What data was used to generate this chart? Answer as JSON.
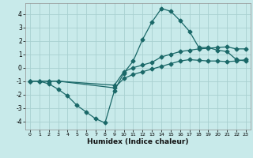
{
  "xlabel": "Humidex (Indice chaleur)",
  "bg_color": "#c8eaea",
  "grid_color": "#a8d0d0",
  "line_color": "#1a6868",
  "xlim": [
    -0.5,
    23.5
  ],
  "ylim": [
    -4.6,
    4.8
  ],
  "xticks": [
    0,
    1,
    2,
    3,
    4,
    5,
    6,
    7,
    8,
    9,
    10,
    11,
    12,
    13,
    14,
    15,
    16,
    17,
    18,
    19,
    20,
    21,
    22,
    23
  ],
  "yticks": [
    -4,
    -3,
    -2,
    -1,
    0,
    1,
    2,
    3,
    4
  ],
  "series1_x": [
    0,
    1,
    2,
    3,
    4,
    5,
    6,
    7,
    8,
    9,
    10,
    11,
    12,
    13,
    14,
    15,
    16,
    17,
    18,
    19,
    20,
    21,
    22,
    23
  ],
  "series1_y": [
    -1.0,
    -1.0,
    -1.2,
    -1.6,
    -2.1,
    -2.8,
    -3.3,
    -3.8,
    -4.1,
    -1.7,
    -0.4,
    0.5,
    2.1,
    3.4,
    4.4,
    4.2,
    3.5,
    2.7,
    1.5,
    1.5,
    1.3,
    1.2,
    0.6,
    0.5
  ],
  "series2_x": [
    0,
    1,
    2,
    3,
    9,
    10,
    11,
    12,
    13,
    14,
    15,
    16,
    17,
    18,
    19,
    20,
    21,
    22,
    23
  ],
  "series2_y": [
    -1.0,
    -1.0,
    -1.0,
    -1.0,
    -1.3,
    -0.3,
    0.0,
    0.2,
    0.4,
    0.8,
    1.0,
    1.2,
    1.3,
    1.4,
    1.45,
    1.5,
    1.55,
    1.4,
    1.4
  ],
  "series3_x": [
    0,
    1,
    2,
    3,
    9,
    10,
    11,
    12,
    13,
    14,
    15,
    16,
    17,
    18,
    19,
    20,
    21,
    22,
    23
  ],
  "series3_y": [
    -1.0,
    -1.0,
    -1.0,
    -1.0,
    -1.5,
    -0.8,
    -0.5,
    -0.3,
    -0.1,
    0.1,
    0.3,
    0.5,
    0.6,
    0.55,
    0.5,
    0.5,
    0.45,
    0.5,
    0.6
  ]
}
